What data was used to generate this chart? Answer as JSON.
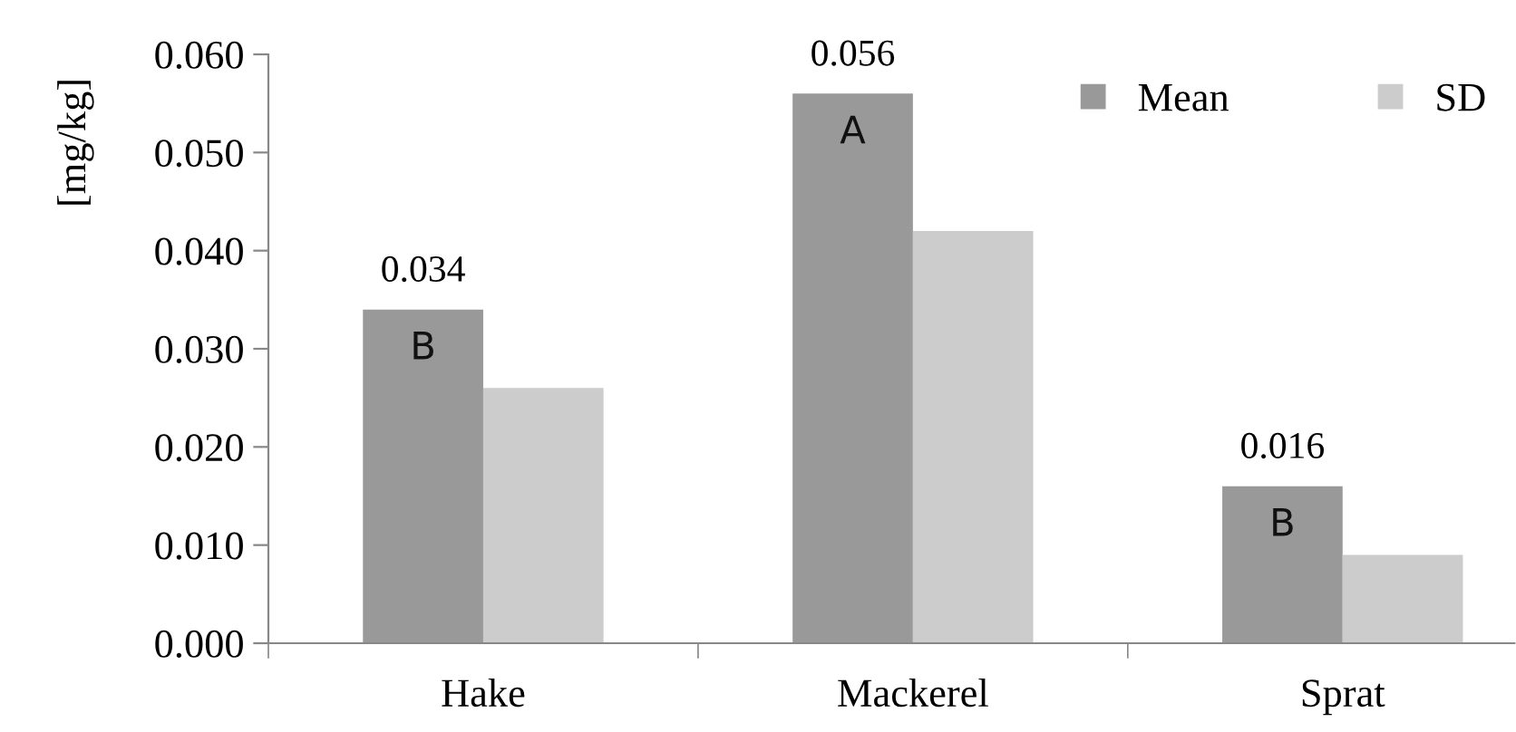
{
  "chart_data": {
    "type": "bar",
    "ylabel": "[mg/kg]",
    "categories": [
      "Hake",
      "Mackerel",
      "Sprat"
    ],
    "series": [
      {
        "name": "Mean",
        "color": "#999999",
        "values": [
          0.034,
          0.056,
          0.016
        ],
        "value_labels": [
          "0.034",
          "0.056",
          "0.016"
        ]
      },
      {
        "name": "SD",
        "color": "#cccccc",
        "values": [
          0.026,
          0.042,
          0.009
        ]
      }
    ],
    "annotations": [
      {
        "text": "B",
        "x": "Hake",
        "y": 0.03
      },
      {
        "text": "A",
        "x": "Mackerel",
        "y": 0.052
      },
      {
        "text": "B",
        "x": "Sprat",
        "y": 0.012
      }
    ],
    "ylim": [
      0,
      0.06
    ],
    "yticks": [
      {
        "value": 0,
        "label": "0.000"
      },
      {
        "value": 0.01,
        "label": "0.010"
      },
      {
        "value": 0.02,
        "label": "0.020"
      },
      {
        "value": 0.03,
        "label": "0.030"
      },
      {
        "value": 0.04,
        "label": "0.040"
      },
      {
        "value": 0.05,
        "label": "0.050"
      },
      {
        "value": 0.06,
        "label": "0.060"
      }
    ],
    "grid": false,
    "legend": "top right"
  }
}
